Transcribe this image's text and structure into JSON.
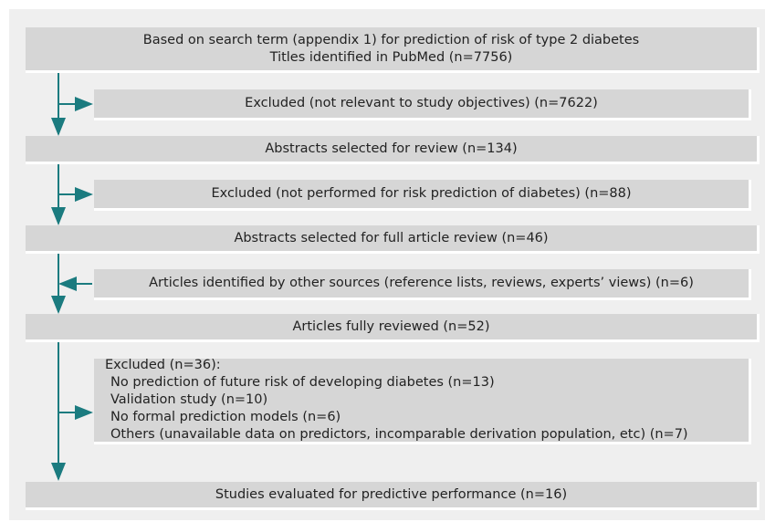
{
  "nodes": [
    {
      "lines": [
        "Based on search term (appendix 1) for prediction of risk of type 2 diabetes",
        "Titles identified in PubMed (n=7756)"
      ]
    },
    {
      "lines": [
        "Excluded (not relevant to study objectives) (n=7622)"
      ]
    },
    {
      "lines": [
        "Abstracts selected for review (n=134)"
      ]
    },
    {
      "lines": [
        "Excluded (not performed for risk prediction of diabetes) (n=88)"
      ]
    },
    {
      "lines": [
        "Abstracts selected for full article review (n=46)"
      ]
    },
    {
      "lines": [
        "Articles identified by other sources (reference lists, reviews, experts’ views) (n=6)"
      ]
    },
    {
      "lines": [
        "Articles fully reviewed (n=52)"
      ]
    },
    {
      "lines": [
        "Excluded (n=36):",
        "No prediction of future risk of developing diabetes (n=13)",
        "Validation study (n=10)",
        "No formal prediction models (n=6)",
        "Others (unavailable data on predictors, incomparable derivation population, etc) (n=7)"
      ]
    },
    {
      "lines": [
        "Studies evaluated for predictive performance (n=16)"
      ]
    }
  ]
}
